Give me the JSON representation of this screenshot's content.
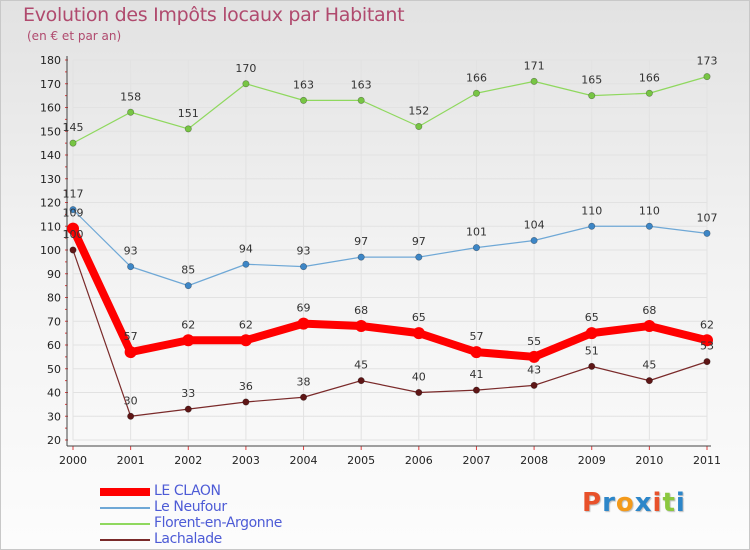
{
  "chart_data": {
    "type": "line",
    "title": "Evolution des Impôts locaux par Habitant",
    "subtitle": "(en € et par an)",
    "xlabel": "",
    "ylabel": "",
    "ylim": [
      20,
      180
    ],
    "yticks": [
      20,
      30,
      40,
      50,
      60,
      70,
      80,
      90,
      100,
      110,
      120,
      130,
      140,
      150,
      160,
      170,
      180
    ],
    "grid": true,
    "legend_position": "bottom-left",
    "categories": [
      "2000",
      "2001",
      "2002",
      "2003",
      "2004",
      "2005",
      "2006",
      "2007",
      "2008",
      "2009",
      "2010",
      "2011"
    ],
    "series": [
      {
        "name": "Florent-en-Argonne",
        "color": "#8fd85e",
        "marker": "#77c544",
        "values": [
          145,
          158,
          151,
          170,
          163,
          163,
          152,
          166,
          171,
          165,
          166,
          173
        ]
      },
      {
        "name": "Le Neufour",
        "color": "#6fa8d6",
        "marker": "#3d86c6",
        "values": [
          117,
          93,
          85,
          94,
          93,
          97,
          97,
          101,
          104,
          110,
          110,
          107
        ]
      },
      {
        "name": "Lachalade",
        "color": "#7a2a2a",
        "marker": "#5e1616",
        "values": [
          100,
          30,
          33,
          36,
          38,
          45,
          40,
          41,
          43,
          51,
          45,
          53
        ]
      },
      {
        "name": "LE CLAON",
        "color": "#ff0000",
        "marker": "#ff0000",
        "values": [
          109,
          57,
          62,
          62,
          69,
          68,
          65,
          57,
          55,
          65,
          68,
          62
        ]
      }
    ],
    "legend_order": [
      "LE CLAON",
      "Le Neufour",
      "Florent-en-Argonne",
      "Lachalade"
    ]
  },
  "logo": {
    "text": "Proxiti",
    "letter_colors": [
      "#e8512a",
      "#2c86c9",
      "#f39a1b",
      "#2c86c9",
      "#e8512a",
      "#8bc83f",
      "#2c86c9"
    ]
  }
}
